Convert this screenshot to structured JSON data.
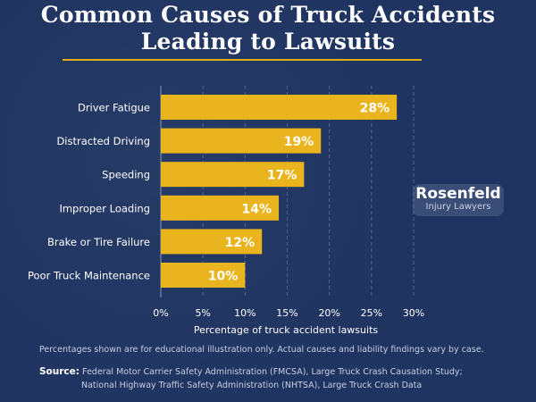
{
  "title_lines": [
    "Common Causes of Truck Accidents",
    "Leading to Lawsuits"
  ],
  "chart_data": {
    "type": "bar",
    "orientation": "horizontal",
    "categories": [
      "Driver Fatigue",
      "Distracted Driving",
      "Speeding",
      "Improper Loading",
      "Brake or Tire Failure",
      "Poor Truck Maintenance"
    ],
    "values": [
      28,
      19,
      17,
      14,
      12,
      10
    ],
    "data_labels": [
      "28%",
      "19%",
      "17%",
      "14%",
      "12%",
      "10%"
    ],
    "x_ticks": [
      "0%",
      "5%",
      "10%",
      "15%",
      "20%",
      "25%",
      "30%"
    ],
    "xlabel": "Percentage of truck accident lawsuits",
    "xlim": [
      0,
      30
    ],
    "grid": "vertical dashed",
    "bar_color": "#e9b41d"
  },
  "logo": {
    "name": "Rosenfeld",
    "sub": "Injury Lawyers"
  },
  "disclaimer": "Percentages shown are for educational illustration only. Actual causes and liability findings vary by case.",
  "source": {
    "label": "Source:",
    "line1": "Federal Motor Carrier Safety Administration (FMCSA), Large Truck Crash Causation Study;",
    "line2": "National Highway Traffic Safety Administration (NHTSA), Large Truck Crash Data"
  },
  "colors": {
    "background": "#1f3461",
    "accent": "#e3ad1a",
    "text": "#ffffff"
  }
}
